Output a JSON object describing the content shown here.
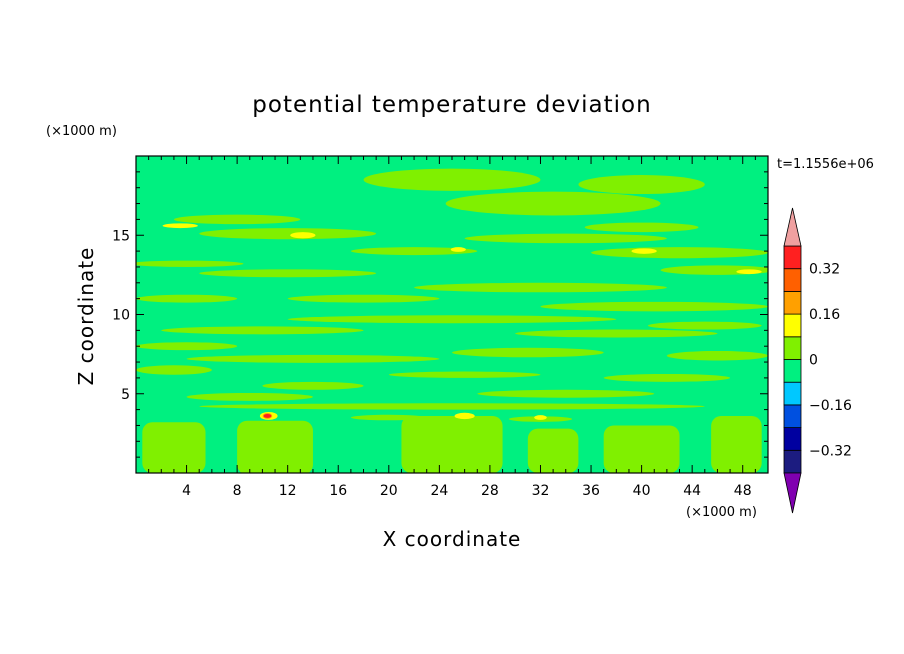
{
  "chart_data": {
    "type": "heatmap",
    "title": "potential temperature deviation",
    "xlabel": "X coordinate",
    "ylabel": "Z coordinate",
    "x_unit": "(×1000 m)",
    "y_unit": "(×1000 m)",
    "time_label": "t=1.1556e+06",
    "xlim": [
      0,
      50
    ],
    "ylim": [
      0,
      20
    ],
    "x_ticks": [
      "4",
      "8",
      "12",
      "16",
      "20",
      "24",
      "28",
      "32",
      "36",
      "40",
      "44",
      "48"
    ],
    "x_tick_values": [
      4,
      8,
      12,
      16,
      20,
      24,
      28,
      32,
      36,
      40,
      44,
      48
    ],
    "y_ticks": [
      "5",
      "10",
      "15"
    ],
    "y_tick_values": [
      5,
      10,
      15
    ],
    "colorbar": {
      "levels": [
        -0.4,
        -0.32,
        -0.24,
        -0.16,
        -0.08,
        0,
        0.08,
        0.16,
        0.24,
        0.32,
        0.4
      ],
      "labels": [
        "0.32",
        "0.16",
        "0",
        "−0.16",
        "−0.32"
      ],
      "label_values": [
        0.32,
        0.16,
        0,
        -0.16,
        -0.32
      ],
      "colors": [
        "#1c1c80",
        "#0000a0",
        "#0050e0",
        "#00c8ff",
        "#00f080",
        "#80f000",
        "#ffff00",
        "#ffa000",
        "#ff6000",
        "#ff2020"
      ],
      "under_color": "#8000b0",
      "over_color": "#f0a0a0"
    },
    "field_colors": {
      "background": "#00f080",
      "positive": "#80f000",
      "high": "#ffff00",
      "peak": "#ffa000",
      "max": "#ff2020"
    },
    "bands": [
      {
        "z": 18.5,
        "x": 25,
        "w": 14,
        "h": 1.4
      },
      {
        "z": 18.2,
        "x": 40,
        "w": 10,
        "h": 1.2
      },
      {
        "z": 17.0,
        "x": 33,
        "w": 17,
        "h": 1.5
      },
      {
        "z": 16.0,
        "x": 8,
        "w": 10,
        "h": 0.6
      },
      {
        "z": 15.5,
        "x": 40,
        "w": 9,
        "h": 0.6
      },
      {
        "z": 15.1,
        "x": 12,
        "w": 14,
        "h": 0.7
      },
      {
        "z": 14.8,
        "x": 34,
        "w": 16,
        "h": 0.6
      },
      {
        "z": 14.0,
        "x": 22,
        "w": 10,
        "h": 0.5
      },
      {
        "z": 13.9,
        "x": 43,
        "w": 14,
        "h": 0.7
      },
      {
        "z": 13.2,
        "x": 4,
        "w": 9,
        "h": 0.4
      },
      {
        "z": 12.8,
        "x": 46,
        "w": 9,
        "h": 0.6
      },
      {
        "z": 12.6,
        "x": 12,
        "w": 14,
        "h": 0.5
      },
      {
        "z": 11.7,
        "x": 32,
        "w": 20,
        "h": 0.6
      },
      {
        "z": 11.0,
        "x": 4,
        "w": 8,
        "h": 0.5
      },
      {
        "z": 11.0,
        "x": 18,
        "w": 12,
        "h": 0.5
      },
      {
        "z": 10.5,
        "x": 41,
        "w": 18,
        "h": 0.6
      },
      {
        "z": 9.7,
        "x": 25,
        "w": 26,
        "h": 0.5
      },
      {
        "z": 9.3,
        "x": 45,
        "w": 9,
        "h": 0.5
      },
      {
        "z": 9.0,
        "x": 10,
        "w": 16,
        "h": 0.5
      },
      {
        "z": 8.8,
        "x": 38,
        "w": 16,
        "h": 0.5
      },
      {
        "z": 8.0,
        "x": 4,
        "w": 8,
        "h": 0.5
      },
      {
        "z": 7.6,
        "x": 31,
        "w": 12,
        "h": 0.6
      },
      {
        "z": 7.4,
        "x": 46,
        "w": 8,
        "h": 0.6
      },
      {
        "z": 7.2,
        "x": 14,
        "w": 20,
        "h": 0.5
      },
      {
        "z": 6.5,
        "x": 3,
        "w": 6,
        "h": 0.6
      },
      {
        "z": 6.2,
        "x": 26,
        "w": 12,
        "h": 0.4
      },
      {
        "z": 6.0,
        "x": 42,
        "w": 10,
        "h": 0.5
      },
      {
        "z": 5.5,
        "x": 14,
        "w": 8,
        "h": 0.5
      },
      {
        "z": 5.0,
        "x": 34,
        "w": 14,
        "h": 0.5
      },
      {
        "z": 4.8,
        "x": 9,
        "w": 10,
        "h": 0.5
      },
      {
        "z": 4.2,
        "x": 25,
        "w": 40,
        "h": 0.4
      },
      {
        "z": 3.5,
        "x": 20,
        "w": 6,
        "h": 0.35
      },
      {
        "z": 3.4,
        "x": 32,
        "w": 5,
        "h": 0.35
      }
    ],
    "lower_blobs": [
      {
        "x": 3,
        "z": 1.6,
        "w": 5,
        "h": 3.2
      },
      {
        "x": 11,
        "z": 1.6,
        "w": 6,
        "h": 3.4
      },
      {
        "x": 25,
        "z": 1.8,
        "w": 8,
        "h": 3.6
      },
      {
        "x": 33,
        "z": 1.4,
        "w": 4,
        "h": 2.8
      },
      {
        "x": 40,
        "z": 1.5,
        "w": 6,
        "h": 3.0
      },
      {
        "x": 47.5,
        "z": 1.8,
        "w": 4,
        "h": 3.6
      }
    ],
    "hot_spots": [
      {
        "x": 3.5,
        "z": 15.6,
        "w": 2.8,
        "h": 0.3
      },
      {
        "x": 13.2,
        "z": 15.0,
        "w": 2.0,
        "h": 0.4
      },
      {
        "x": 25.5,
        "z": 14.1,
        "w": 1.2,
        "h": 0.3
      },
      {
        "x": 40.2,
        "z": 14.0,
        "w": 2.0,
        "h": 0.35
      },
      {
        "x": 48.5,
        "z": 12.7,
        "w": 2.0,
        "h": 0.3
      },
      {
        "x": 10.5,
        "z": 3.6,
        "w": 1.4,
        "h": 0.5
      },
      {
        "x": 26.0,
        "z": 3.6,
        "w": 1.6,
        "h": 0.4
      },
      {
        "x": 32.0,
        "z": 3.5,
        "w": 1.0,
        "h": 0.3
      }
    ],
    "peak_spot": {
      "x": 10.4,
      "z": 3.6,
      "w": 0.6,
      "h": 0.25
    }
  }
}
